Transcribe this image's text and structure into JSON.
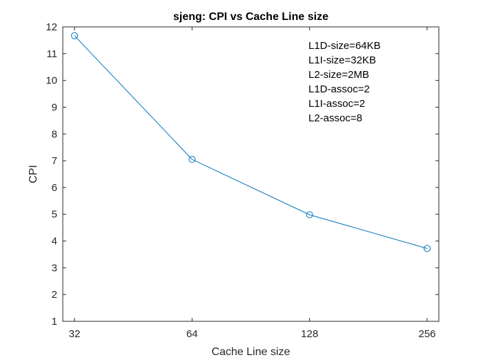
{
  "chart_data": {
    "type": "line",
    "title": "sjeng: CPI vs Cache Line size",
    "xlabel": "Cache Line size",
    "ylabel": "CPI",
    "x_scale": "log2",
    "x": [
      32,
      64,
      128,
      256
    ],
    "x_tick_labels": [
      "32",
      "64",
      "128",
      "256"
    ],
    "ylim": [
      1,
      12
    ],
    "y_ticks": [
      1,
      2,
      3,
      4,
      5,
      6,
      7,
      8,
      9,
      10,
      11,
      12
    ],
    "series": [
      {
        "values": [
          11.67,
          7.05,
          4.98,
          3.72
        ],
        "color": "#0072BD",
        "marker": "circle"
      }
    ],
    "annotations": [
      "L1D-size=64KB",
      "L1I-size=32KB",
      "L2-size=2MB",
      "L1D-assoc=2",
      "L1I-assoc=2",
      "L2-assoc=8"
    ],
    "grid": false,
    "box": true
  }
}
